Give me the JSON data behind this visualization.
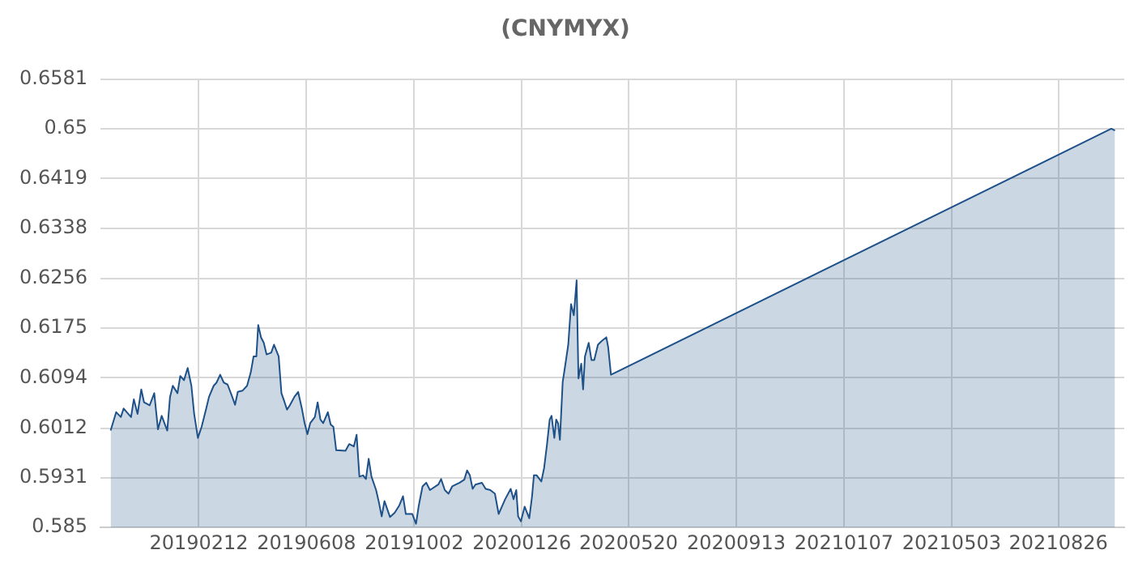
{
  "chart_data": {
    "type": "area",
    "title": "(CNYMYX)",
    "x": [
      "2018-11-09",
      "2018-11-15",
      "2018-11-20",
      "2018-11-23",
      "2018-11-27",
      "2018-12-01",
      "2018-12-04",
      "2018-12-08",
      "2018-12-12",
      "2018-12-15",
      "2018-12-21",
      "2018-12-26",
      "2018-12-30",
      "2019-01-03",
      "2019-01-09",
      "2019-01-12",
      "2019-01-15",
      "2019-01-20",
      "2019-01-23",
      "2019-01-27",
      "2019-01-31",
      "2019-02-04",
      "2019-02-07",
      "2019-02-11",
      "2019-02-15",
      "2019-02-20",
      "2019-02-23",
      "2019-02-28",
      "2019-03-03",
      "2019-03-07",
      "2019-03-11",
      "2019-03-15",
      "2019-03-20",
      "2019-03-23",
      "2019-03-26",
      "2019-03-31",
      "2019-04-05",
      "2019-04-09",
      "2019-04-12",
      "2019-04-15",
      "2019-04-17",
      "2019-04-20",
      "2019-04-23",
      "2019-04-26",
      "2019-05-01",
      "2019-05-04",
      "2019-05-09",
      "2019-05-12",
      "2019-05-15",
      "2019-05-18",
      "2019-05-21",
      "2019-05-26",
      "2019-05-30",
      "2019-06-03",
      "2019-06-06",
      "2019-06-09",
      "2019-06-12",
      "2019-06-17",
      "2019-06-20",
      "2019-06-23",
      "2019-06-26",
      "2019-07-01",
      "2019-07-04",
      "2019-07-07",
      "2019-07-10",
      "2019-07-20",
      "2019-07-24",
      "2019-07-29",
      "2019-08-01",
      "2019-08-04",
      "2019-08-08",
      "2019-08-11",
      "2019-08-14",
      "2019-08-17",
      "2019-08-22",
      "2019-08-25",
      "2019-08-28",
      "2019-08-31",
      "2019-09-06",
      "2019-09-11",
      "2019-09-16",
      "2019-09-20",
      "2019-09-23",
      "2019-09-30",
      "2019-10-04",
      "2019-10-07",
      "2019-10-11",
      "2019-10-15",
      "2019-10-19",
      "2019-10-28",
      "2019-10-31",
      "2019-11-04",
      "2019-11-08",
      "2019-11-12",
      "2019-11-20",
      "2019-11-25",
      "2019-11-28",
      "2019-12-01",
      "2019-12-04",
      "2019-12-07",
      "2019-12-14",
      "2019-12-18",
      "2019-12-23",
      "2019-12-28",
      "2020-01-01",
      "2020-01-08",
      "2020-01-14",
      "2020-01-17",
      "2020-01-20",
      "2020-01-22",
      "2020-01-25",
      "2020-01-29",
      "2020-02-03",
      "2020-02-06",
      "2020-02-08",
      "2020-02-11",
      "2020-02-16",
      "2020-02-19",
      "2020-02-22",
      "2020-02-25",
      "2020-02-27",
      "2020-03-01",
      "2020-03-03",
      "2020-03-05",
      "2020-03-07",
      "2020-03-10",
      "2020-03-13",
      "2020-03-16",
      "2020-03-19",
      "2020-03-22",
      "2020-03-25",
      "2020-03-27",
      "2020-03-30",
      "2020-04-01",
      "2020-04-03",
      "2020-04-07",
      "2020-04-10",
      "2020-04-13",
      "2020-04-17",
      "2020-04-21",
      "2020-04-26",
      "2020-04-28",
      "2020-05-01",
      "2021-10-22",
      "2021-10-26"
    ],
    "series": [
      {
        "color": "#1f5189",
        "values": [
          0.6008,
          0.6038,
          0.603,
          0.6044,
          0.6037,
          0.603,
          0.6059,
          0.6035,
          0.6075,
          0.6054,
          0.6049,
          0.6069,
          0.601,
          0.6032,
          0.6008,
          0.6063,
          0.6081,
          0.6069,
          0.6097,
          0.609,
          0.611,
          0.6081,
          0.6035,
          0.5996,
          0.6014,
          0.6044,
          0.6063,
          0.6081,
          0.6086,
          0.6099,
          0.6086,
          0.6083,
          0.6063,
          0.605,
          0.6071,
          0.6073,
          0.6081,
          0.6103,
          0.6129,
          0.6129,
          0.618,
          0.616,
          0.6151,
          0.6132,
          0.6135,
          0.6148,
          0.6129,
          0.6069,
          0.6056,
          0.6042,
          0.6049,
          0.6063,
          0.6071,
          0.6044,
          0.602,
          0.6002,
          0.602,
          0.603,
          0.6054,
          0.6026,
          0.602,
          0.6038,
          0.6018,
          0.6014,
          0.5976,
          0.5975,
          0.5986,
          0.5982,
          0.6001,
          0.5933,
          0.5935,
          0.5929,
          0.5962,
          0.5933,
          0.5911,
          0.5891,
          0.5868,
          0.5893,
          0.5867,
          0.5874,
          0.5886,
          0.5901,
          0.5872,
          0.5872,
          0.5856,
          0.5886,
          0.5917,
          0.5923,
          0.5911,
          0.592,
          0.5929,
          0.5911,
          0.5905,
          0.5917,
          0.5923,
          0.5928,
          0.5943,
          0.5935,
          0.5913,
          0.592,
          0.5923,
          0.5913,
          0.5911,
          0.5905,
          0.5872,
          0.5896,
          0.5913,
          0.5896,
          0.5911,
          0.5868,
          0.586,
          0.5884,
          0.5865,
          0.5901,
          0.5935,
          0.5935,
          0.5925,
          0.5947,
          0.5984,
          0.6026,
          0.6032,
          0.5996,
          0.6026,
          0.602,
          0.5993,
          0.6087,
          0.6117,
          0.6148,
          0.6214,
          0.6196,
          0.6253,
          0.6093,
          0.6117,
          0.6075,
          0.6129,
          0.6151,
          0.6123,
          0.6123,
          0.6148,
          0.6154,
          0.616,
          0.6144,
          0.6099,
          0.65,
          0.6497
        ]
      }
    ],
    "xlim": [
      "2018-10-29",
      "2021-11-05"
    ],
    "xticks": [
      {
        "value": "2019-02-12",
        "label": "20190212"
      },
      {
        "value": "2019-06-08",
        "label": "20190608"
      },
      {
        "value": "2019-10-02",
        "label": "20191002"
      },
      {
        "value": "2020-01-26",
        "label": "20200126"
      },
      {
        "value": "2020-05-20",
        "label": "20200520"
      },
      {
        "value": "2020-09-13",
        "label": "20200913"
      },
      {
        "value": "2021-01-07",
        "label": "20210107"
      },
      {
        "value": "2021-05-03",
        "label": "20210503"
      },
      {
        "value": "2021-08-26",
        "label": "20210826"
      }
    ],
    "ylim": [
      0.585,
      0.6581
    ],
    "yticks": [
      0.585,
      0.5931,
      0.6012,
      0.6094,
      0.6175,
      0.6256,
      0.6338,
      0.6419,
      0.65,
      0.6581
    ],
    "grid": true,
    "legend": false,
    "marker": "none",
    "line_style": "solid"
  }
}
